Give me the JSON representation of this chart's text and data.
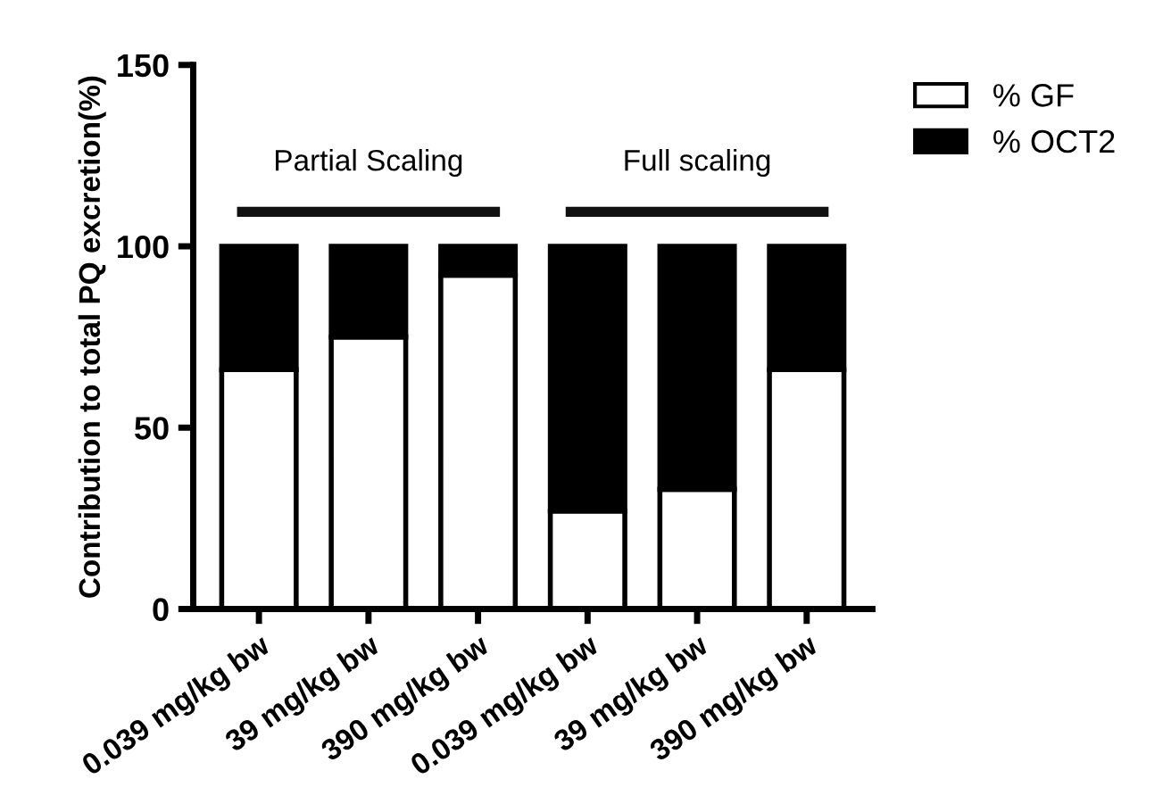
{
  "chart_data": {
    "type": "bar",
    "stacked": true,
    "ylabel": "Contribution to total PQ excretion(%)",
    "categories": [
      "0.039 mg/kg bw",
      "39 mg/kg bw",
      "390 mg/kg bw",
      "0.039 mg/kg bw",
      "39 mg/kg bw",
      "390 mg/kg bw"
    ],
    "series": [
      {
        "name": "% GF",
        "color": "#ffffff",
        "values": [
          66,
          75,
          92,
          27,
          33,
          66
        ]
      },
      {
        "name": "% OCT2",
        "color": "#000000",
        "values": [
          34,
          25,
          8,
          73,
          67,
          34
        ]
      }
    ],
    "ylim": [
      0,
      150
    ],
    "yticks": [
      0,
      50,
      100,
      150
    ],
    "grid": false,
    "legend": "top right",
    "annotations": [
      "Partial Scaling",
      "Full scaling"
    ]
  }
}
